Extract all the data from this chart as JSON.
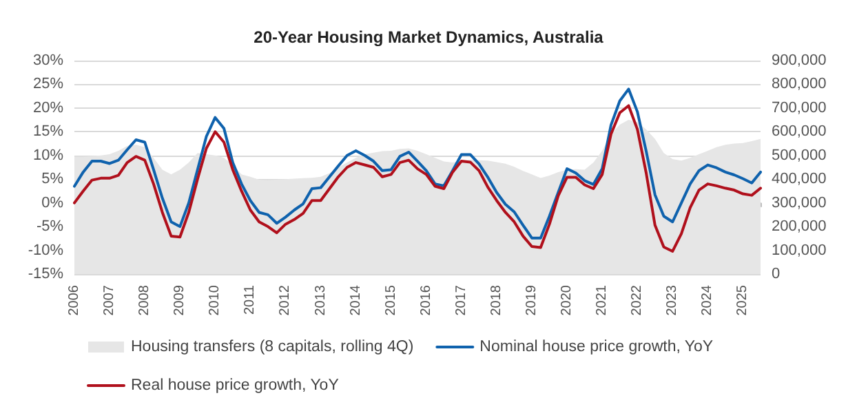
{
  "chart_data": {
    "type": "line",
    "title": "20-Year Housing Market Dynamics, Australia",
    "categories": [
      "2006",
      null,
      null,
      null,
      "2007",
      null,
      null,
      null,
      "2008",
      null,
      null,
      null,
      "2009",
      null,
      null,
      null,
      "2010",
      null,
      null,
      null,
      "2011",
      null,
      null,
      null,
      "2012",
      null,
      null,
      null,
      "2013",
      null,
      null,
      null,
      "2014",
      null,
      null,
      null,
      "2015",
      null,
      null,
      null,
      "2016",
      null,
      null,
      null,
      "2017",
      null,
      null,
      null,
      "2018",
      null,
      null,
      null,
      "2019",
      null,
      null,
      null,
      "2020",
      null,
      null,
      null,
      "2021",
      null,
      null,
      null,
      "2022",
      null,
      null,
      null,
      "2023",
      null,
      null,
      null,
      "2024",
      null,
      null,
      null,
      "2025",
      null,
      null
    ],
    "series": [
      {
        "name": "Housing transfers (8 capitals, rolling 4Q)",
        "type": "area",
        "axis": "y2",
        "color": "#e6e6e6",
        "values": [
          495000,
          495000,
          497000,
          500000,
          505000,
          520000,
          540000,
          545000,
          535000,
          490000,
          440000,
          420000,
          440000,
          470000,
          510000,
          505000,
          500000,
          490000,
          460000,
          420000,
          410000,
          398000,
          396000,
          398000,
          400000,
          402000,
          404000,
          406000,
          410000,
          425000,
          450000,
          470000,
          490000,
          505000,
          512000,
          518000,
          520000,
          528000,
          530000,
          520000,
          505000,
          490000,
          475000,
          470000,
          478000,
          482000,
          480000,
          478000,
          472000,
          465000,
          452000,
          435000,
          420000,
          405000,
          415000,
          430000,
          440000,
          442000,
          440000,
          470000,
          520000,
          590000,
          630000,
          650000,
          640000,
          610000,
          570000,
          510000,
          485000,
          478000,
          490000,
          505000,
          520000,
          535000,
          545000,
          550000,
          552000,
          560000,
          570000
        ]
      },
      {
        "name": "Nominal house price growth, YoY",
        "color": "#0f62ad",
        "values": [
          3.5,
          6.5,
          8.8,
          8.8,
          8.3,
          9,
          11.2,
          13.3,
          12.8,
          7,
          1,
          -4,
          -5,
          0,
          7,
          14,
          18,
          15.7,
          8.5,
          4,
          0.5,
          -2,
          -2.5,
          -4.3,
          -3,
          -1.5,
          -0.2,
          3,
          3.2,
          5.5,
          7.8,
          10,
          11,
          10,
          8.8,
          6.8,
          7,
          9.8,
          10.7,
          8.8,
          6.8,
          4,
          3.6,
          6.8,
          10.2,
          10.2,
          8.2,
          5.4,
          2.2,
          -0.3,
          -1.9,
          -4.7,
          -7.4,
          -7.4,
          -2.8,
          2.2,
          7.2,
          6.3,
          4.7,
          3.9,
          7.2,
          16.4,
          21.5,
          24,
          19.2,
          10.9,
          1.7,
          -2.8,
          -4,
          0,
          4,
          6.8,
          8,
          7.4,
          6.5,
          5.9,
          5.1,
          4.2,
          6.5
        ]
      },
      {
        "name": "Real house price growth, YoY",
        "color": "#b0101c",
        "values": [
          0,
          2.5,
          4.8,
          5.2,
          5.2,
          5.8,
          8.5,
          9.8,
          9,
          4,
          -2,
          -7,
          -7.2,
          -2,
          5,
          11.5,
          15,
          12.8,
          7,
          2.5,
          -1.5,
          -4,
          -5,
          -6.3,
          -4.5,
          -3.5,
          -2.2,
          0.5,
          0.5,
          3,
          5.5,
          7.5,
          8.5,
          8,
          7.5,
          5.5,
          6,
          8.5,
          9,
          7.2,
          6,
          3.5,
          3,
          6.5,
          8.8,
          8.6,
          6.8,
          3.3,
          0.5,
          -2,
          -4,
          -7,
          -9.2,
          -9.4,
          -4.5,
          1.5,
          5.4,
          5.4,
          3.8,
          3,
          6,
          14.5,
          19,
          20.5,
          15.5,
          6.3,
          -4.7,
          -9.3,
          -10.2,
          -6.5,
          -1,
          2.7,
          4,
          3.6,
          3.1,
          2.7,
          1.9,
          1.6,
          3.1
        ]
      }
    ],
    "ylim": [
      -15,
      30
    ],
    "yticks": [
      {
        "value": -15,
        "label": "-15%"
      },
      {
        "value": -10,
        "label": "-10%"
      },
      {
        "value": -5,
        "label": "-5%"
      },
      {
        "value": 0,
        "label": "0%"
      },
      {
        "value": 5,
        "label": "5%"
      },
      {
        "value": 10,
        "label": "10%"
      },
      {
        "value": 15,
        "label": "15%"
      },
      {
        "value": 20,
        "label": "20%"
      },
      {
        "value": 25,
        "label": "25%"
      },
      {
        "value": 30,
        "label": "30%"
      }
    ],
    "y2lim": [
      0,
      900000
    ],
    "y2ticks": [
      {
        "value": 0,
        "label": "0"
      },
      {
        "value": 100000,
        "label": "100,000"
      },
      {
        "value": 200000,
        "label": "200,000"
      },
      {
        "value": 300000,
        "label": "300,000"
      },
      {
        "value": 400000,
        "label": "400,000"
      },
      {
        "value": 500000,
        "label": "500,000"
      },
      {
        "value": 600000,
        "label": "600,000"
      },
      {
        "value": 700000,
        "label": "700,000"
      },
      {
        "value": 800000,
        "label": "800,000"
      },
      {
        "value": 900000,
        "label": "900,000"
      }
    ],
    "grid": "y",
    "legend": "bottom",
    "line_style": "solid",
    "marker": "none"
  }
}
